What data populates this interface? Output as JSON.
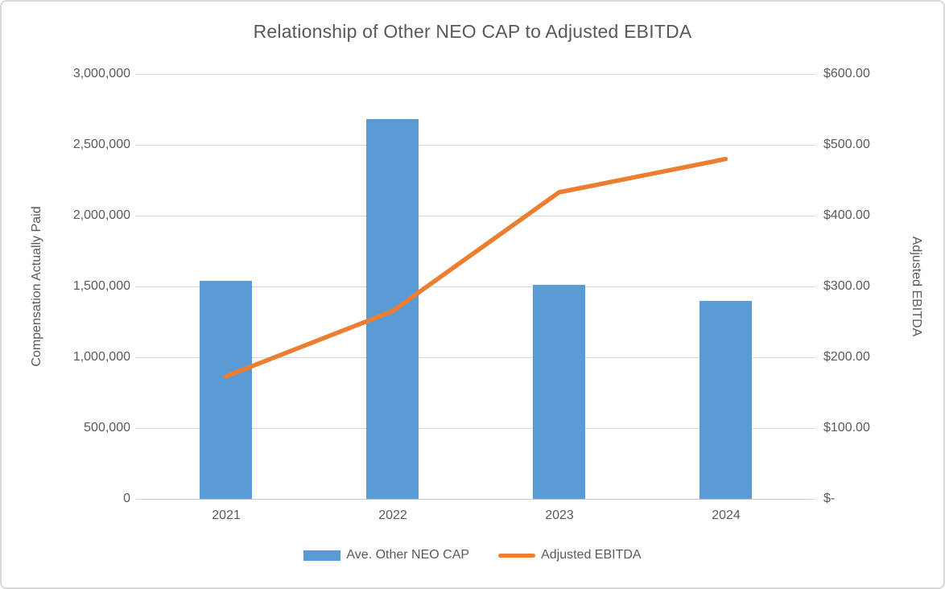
{
  "chart_data": {
    "type": "bar",
    "subtype": "combo-bar-line-dual-axis",
    "title": "Relationship of Other NEO CAP to Adjusted EBITDA",
    "categories": [
      "2021",
      "2022",
      "2023",
      "2024"
    ],
    "series": [
      {
        "name": "Ave. Other NEO CAP",
        "type": "bar",
        "axis": "left",
        "values": [
          1540000,
          2680000,
          1510000,
          1400000
        ],
        "color": "#5B9BD5"
      },
      {
        "name": "Adjusted EBITDA",
        "type": "line",
        "axis": "right",
        "values": [
          173,
          265,
          433,
          480
        ],
        "color": "#ED7D31"
      }
    ],
    "left_axis": {
      "label": "Compensation Actually Paid",
      "min": 0,
      "max": 3000000,
      "tick_labels": [
        "3,000,000",
        "2,500,000",
        "2,000,000",
        "1,500,000",
        "1,000,000",
        "500,000",
        "0"
      ]
    },
    "right_axis": {
      "label": "Adjusted EBITDA",
      "min": 0,
      "max": 600,
      "tick_labels": [
        "$600.00",
        "$500.00",
        "$400.00",
        "$300.00",
        "$200.00",
        "$100.00",
        "$-"
      ]
    },
    "xlabel": "",
    "ylabel": "Compensation Actually Paid",
    "grid": true,
    "legend": {
      "position": "bottom",
      "entries": [
        {
          "label": "Ave. Other NEO CAP",
          "swatch": "bar",
          "color": "#5B9BD5"
        },
        {
          "label": "Adjusted EBITDA",
          "swatch": "line",
          "color": "#ED7D31"
        }
      ]
    },
    "colors": {
      "text": "#595959",
      "gridline": "#D9D9D9",
      "axis_line": "#C8C8C8",
      "bar": "#5B9BD5",
      "line": "#ED7D31"
    }
  }
}
